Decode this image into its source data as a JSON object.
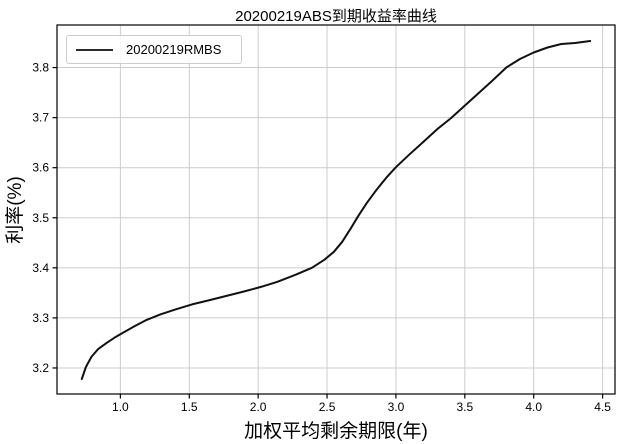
{
  "chart_data": {
    "type": "line",
    "title": "20200219ABS到期收益率曲线",
    "xlabel": "加权平均剩余期限(年)",
    "ylabel": "利率(%)",
    "xlim": [
      0.54,
      4.59
    ],
    "ylim": [
      3.148,
      3.885
    ],
    "xticks": [
      1.0,
      1.5,
      2.0,
      2.5,
      3.0,
      3.5,
      4.0,
      4.5
    ],
    "xtick_labels": [
      "1.0",
      "1.5",
      "2.0",
      "2.5",
      "3.0",
      "3.5",
      "4.0",
      "4.5"
    ],
    "yticks": [
      3.2,
      3.3,
      3.4,
      3.5,
      3.6,
      3.7,
      3.8
    ],
    "ytick_labels": [
      "3.2",
      "3.3",
      "3.4",
      "3.5",
      "3.6",
      "3.7",
      "3.8"
    ],
    "grid": true,
    "grid_color": "#cccccc",
    "axis_color": "#000000",
    "background": "#ffffff",
    "legend_position": "upper left",
    "series": [
      {
        "name": "20200219RMBS",
        "color": "#111111",
        "line_width": 2,
        "x": [
          0.72,
          0.75,
          0.79,
          0.84,
          0.9,
          0.96,
          1.03,
          1.1,
          1.19,
          1.29,
          1.4,
          1.52,
          1.64,
          1.77,
          1.9,
          2.02,
          2.14,
          2.27,
          2.39,
          2.48,
          2.55,
          2.61,
          2.67,
          2.73,
          2.79,
          2.86,
          2.93,
          3.0,
          3.1,
          3.2,
          3.3,
          3.4,
          3.5,
          3.6,
          3.7,
          3.8,
          3.9,
          4.0,
          4.1,
          4.2,
          4.3,
          4.41
        ],
        "y": [
          3.178,
          3.202,
          3.222,
          3.238,
          3.25,
          3.261,
          3.272,
          3.283,
          3.296,
          3.307,
          3.317,
          3.327,
          3.335,
          3.344,
          3.353,
          3.362,
          3.372,
          3.386,
          3.4,
          3.416,
          3.432,
          3.452,
          3.478,
          3.505,
          3.53,
          3.556,
          3.58,
          3.601,
          3.627,
          3.652,
          3.677,
          3.699,
          3.724,
          3.749,
          3.774,
          3.8,
          3.817,
          3.83,
          3.84,
          3.847,
          3.849,
          3.853
        ]
      }
    ]
  }
}
